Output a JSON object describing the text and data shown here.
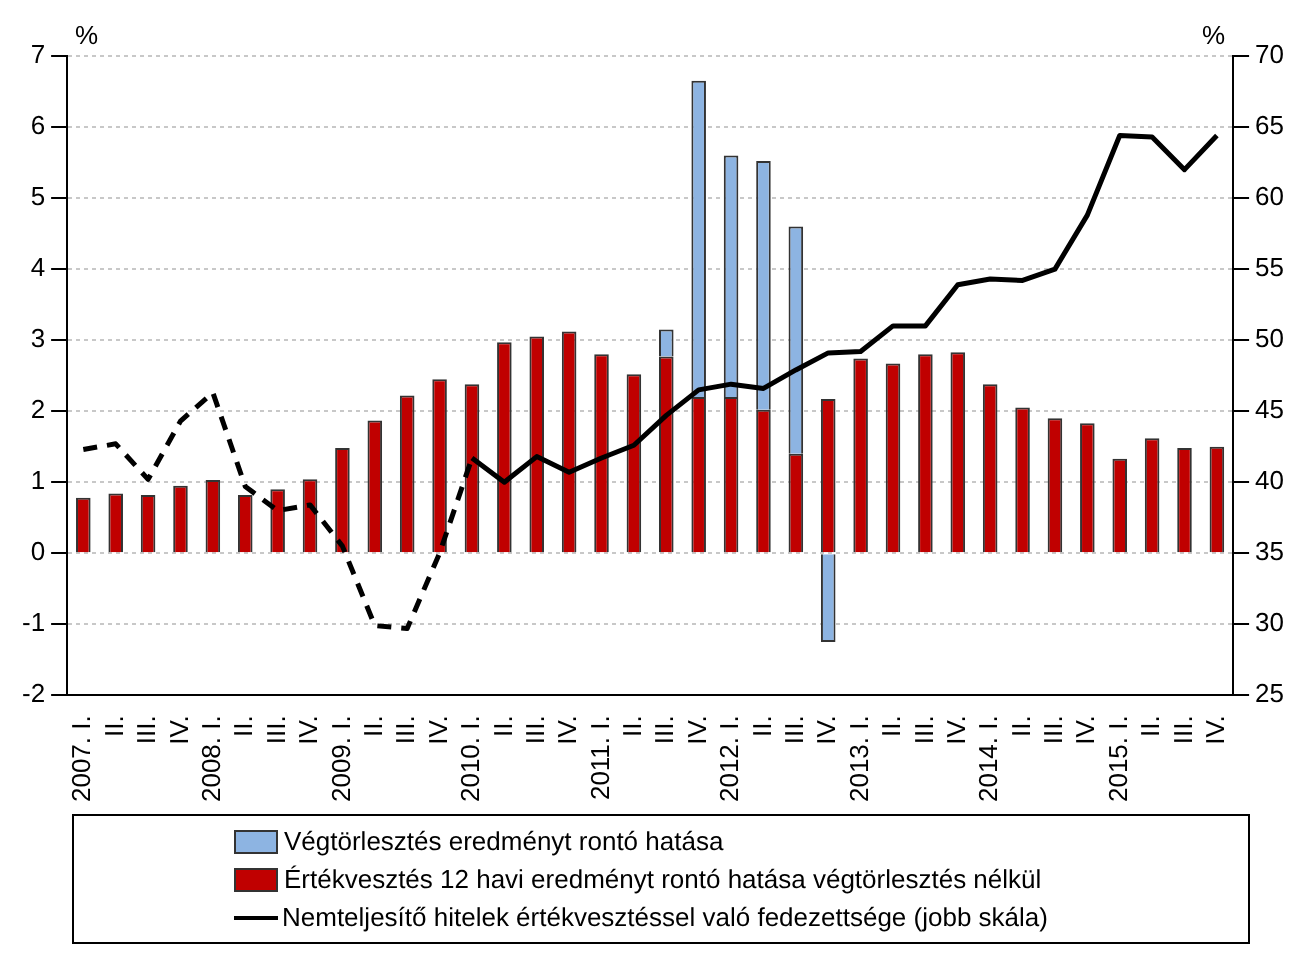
{
  "chart_data": {
    "type": "bar",
    "categories": [
      "2007. I.",
      "II.",
      "III.",
      "IV.",
      "2008. I.",
      "II.",
      "III.",
      "IV.",
      "2009. I.",
      "II.",
      "III.",
      "IV.",
      "2010. I.",
      "II.",
      "III.",
      "IV.",
      "2011. I.",
      "II.",
      "III.",
      "IV.",
      "2012. I.",
      "II.",
      "III.",
      "IV.",
      "2013. I.",
      "II.",
      "III.",
      "IV.",
      "2014. I.",
      "II.",
      "III.",
      "IV.",
      "2015. I.",
      "II.",
      "III.",
      "IV."
    ],
    "stacked": true,
    "series": [
      {
        "name": "Értékvesztés 12 havi eredményt rontó hatása végtörlesztés nélkül",
        "color": "#c00000",
        "values": [
          0.78,
          0.84,
          0.82,
          0.95,
          1.03,
          0.82,
          0.9,
          1.04,
          1.48,
          1.87,
          2.22,
          2.45,
          2.38,
          2.97,
          3.05,
          3.12,
          2.8,
          2.52,
          2.77,
          2.2,
          2.2,
          2.02,
          1.4,
          2.17,
          2.74,
          2.67,
          2.8,
          2.83,
          2.38,
          2.05,
          1.9,
          1.83,
          1.33,
          1.62,
          1.48,
          1.5
        ]
      },
      {
        "name": "Végtörlesztés eredményt rontó hatása",
        "color": "#8db4e2",
        "values": [
          null,
          null,
          null,
          null,
          null,
          null,
          null,
          null,
          null,
          null,
          null,
          null,
          null,
          null,
          null,
          null,
          null,
          null,
          0.38,
          4.45,
          3.4,
          3.5,
          3.2,
          -1.25,
          null,
          null,
          null,
          null,
          null,
          null,
          null,
          null,
          null,
          null,
          null,
          null
        ]
      },
      {
        "type": "line",
        "axis": "y2",
        "color": "#000000",
        "line_style": "dashed",
        "values": [
          42.3,
          42.7,
          40.2,
          44.3,
          46.3,
          39.7,
          38,
          38.4,
          35.5,
          29.9,
          29.7,
          35,
          41.7,
          null,
          null,
          null,
          null,
          null,
          null,
          null,
          null,
          null,
          null,
          null,
          null,
          null,
          null,
          null,
          null,
          null,
          null,
          null,
          null,
          null,
          null,
          null
        ]
      },
      {
        "name": "Nemteljesítő hitelek értékvesztéssel való fedezettsége (jobb skála)",
        "type": "line",
        "axis": "y2",
        "color": "#000000",
        "line_style": "solid",
        "values": [
          null,
          null,
          null,
          null,
          null,
          null,
          null,
          null,
          null,
          null,
          null,
          null,
          41.7,
          40,
          41.8,
          40.7,
          41.7,
          42.6,
          44.7,
          46.5,
          46.9,
          46.6,
          47.9,
          49.1,
          49.2,
          51,
          51,
          53.9,
          54.3,
          54.2,
          55,
          58.8,
          64.4,
          64.3,
          62,
          64.4
        ]
      }
    ],
    "ylabel": "%",
    "y2label": "%",
    "ylim": [
      -2,
      7
    ],
    "yticks": [
      -2,
      -1,
      0,
      1,
      2,
      3,
      4,
      5,
      6,
      7
    ],
    "y2lim": [
      25,
      70
    ],
    "y2ticks": [
      25,
      30,
      35,
      40,
      45,
      50,
      55,
      60,
      65,
      70
    ],
    "grid": "y",
    "legend": "bottom",
    "marker": "none"
  }
}
